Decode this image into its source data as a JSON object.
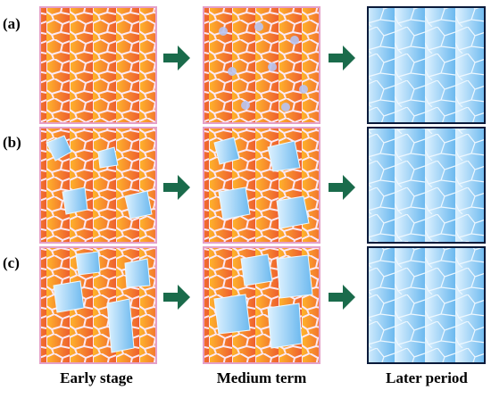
{
  "row_labels": [
    "(a)",
    "(b)",
    "(c)"
  ],
  "column_labels": [
    "Early stage",
    "Medium term",
    "Later period"
  ]
}
